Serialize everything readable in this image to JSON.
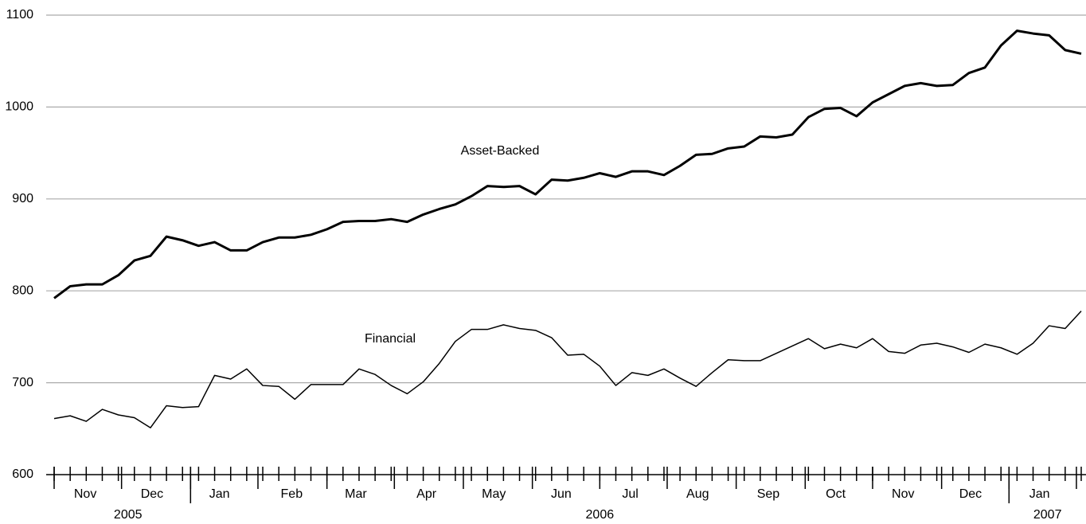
{
  "chart_data": {
    "type": "line",
    "xlim": [
      0,
      64
    ],
    "x": [
      0,
      1,
      2,
      3,
      4,
      5,
      6,
      7,
      8,
      9,
      10,
      11,
      12,
      13,
      14,
      15,
      16,
      17,
      18,
      19,
      20,
      21,
      22,
      23,
      24,
      25,
      26,
      27,
      28,
      29,
      30,
      31,
      32,
      33,
      34,
      35,
      36,
      37,
      38,
      39,
      40,
      41,
      42,
      43,
      44,
      45,
      46,
      47,
      48,
      49,
      50,
      51,
      52,
      53,
      54,
      55,
      56,
      57,
      58,
      59,
      60,
      61,
      62,
      63,
      64
    ],
    "series": [
      {
        "name": "Asset-Backed",
        "color": "#000000",
        "width": 3,
        "values": [
          792,
          805,
          807,
          807,
          817,
          833,
          838,
          859,
          855,
          849,
          853,
          844,
          844,
          853,
          858,
          858,
          861,
          867,
          875,
          876,
          876,
          878,
          875,
          883,
          889,
          894,
          903,
          914,
          913,
          914,
          905,
          921,
          920,
          923,
          928,
          924,
          930,
          930,
          926,
          936,
          948,
          949,
          955,
          957,
          968,
          967,
          970,
          989,
          998,
          999,
          990,
          1005,
          1014,
          1023,
          1026,
          1023,
          1024,
          1037,
          1043,
          1067,
          1083,
          1080,
          1078,
          1062,
          1058
        ]
      },
      {
        "name": "Financial",
        "color": "#000000",
        "width": 1.5,
        "values": [
          661,
          664,
          658,
          671,
          665,
          662,
          651,
          675,
          673,
          674,
          708,
          704,
          715,
          697,
          696,
          682,
          698,
          698,
          698,
          715,
          709,
          697,
          688,
          701,
          721,
          745,
          758,
          758,
          763,
          759,
          757,
          749,
          730,
          731,
          718,
          697,
          711,
          708,
          715,
          705,
          696,
          711,
          725,
          724,
          724,
          732,
          740,
          748,
          737,
          742,
          738,
          748,
          734,
          732,
          741,
          743,
          739,
          733,
          742,
          738,
          731,
          743,
          762,
          759,
          778
        ]
      }
    ],
    "ylim": [
      600,
      1100
    ],
    "yticks": [
      600,
      700,
      800,
      900,
      1000,
      1100
    ],
    "grid": true,
    "xticks": [
      {
        "value": 1.94,
        "label": "Nov"
      },
      {
        "value": 6.1,
        "label": "Dec"
      },
      {
        "value": 10.3,
        "label": "Jan"
      },
      {
        "value": 14.8,
        "label": "Feb"
      },
      {
        "value": 18.8,
        "label": "Mar"
      },
      {
        "value": 23.2,
        "label": "Apr"
      },
      {
        "value": 27.4,
        "label": "May"
      },
      {
        "value": 31.6,
        "label": "Jun"
      },
      {
        "value": 35.9,
        "label": "Jul"
      },
      {
        "value": 40.1,
        "label": "Aug"
      },
      {
        "value": 44.5,
        "label": "Sep"
      },
      {
        "value": 48.7,
        "label": "Oct"
      },
      {
        "value": 52.9,
        "label": "Nov"
      },
      {
        "value": 57.1,
        "label": "Dec"
      },
      {
        "value": 61.4,
        "label": "Jan"
      }
    ],
    "month_boundaries": [
      0,
      4.2,
      8.5,
      12.7,
      17.0,
      21.2,
      25.5,
      29.8,
      34.0,
      38.2,
      42.5,
      46.8,
      51.0,
      55.3,
      59.5,
      63.7
    ],
    "year_boundaries": [
      8.5,
      59.5
    ],
    "year_labels": [
      {
        "value": 4.6,
        "label": "2005"
      },
      {
        "value": 34.0,
        "label": "2006"
      },
      {
        "value": 61.9,
        "label": "2007"
      }
    ]
  }
}
